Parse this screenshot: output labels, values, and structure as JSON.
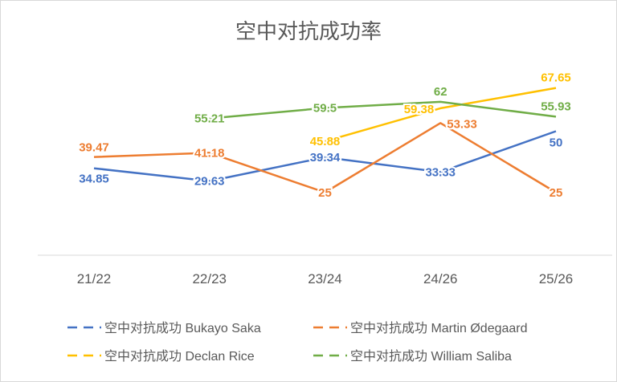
{
  "chart_data": {
    "type": "line",
    "title": "空中对抗成功率",
    "categories": [
      "21/22",
      "22/23",
      "23/24",
      "24/26",
      "25/26"
    ],
    "ylim": [
      0,
      80
    ],
    "grid": false,
    "legend_position": "bottom",
    "series": [
      {
        "name": "空中对抗成功 Bukayo Saka",
        "color": "#4472c4",
        "values": [
          34.85,
          29.63,
          39.34,
          33.33,
          50
        ]
      },
      {
        "name": "空中对抗成功 Martin Ødegaard",
        "color": "#ed7d31",
        "values": [
          39.47,
          41.18,
          25,
          53.33,
          25
        ]
      },
      {
        "name": "空中对抗成功 Declan Rice",
        "color": "#ffc000",
        "values": [
          null,
          null,
          45.88,
          59.38,
          67.65
        ]
      },
      {
        "name": "空中对抗成功 William Saliba",
        "color": "#70ad47",
        "values": [
          null,
          55.21,
          59.5,
          62,
          55.93
        ]
      }
    ]
  }
}
